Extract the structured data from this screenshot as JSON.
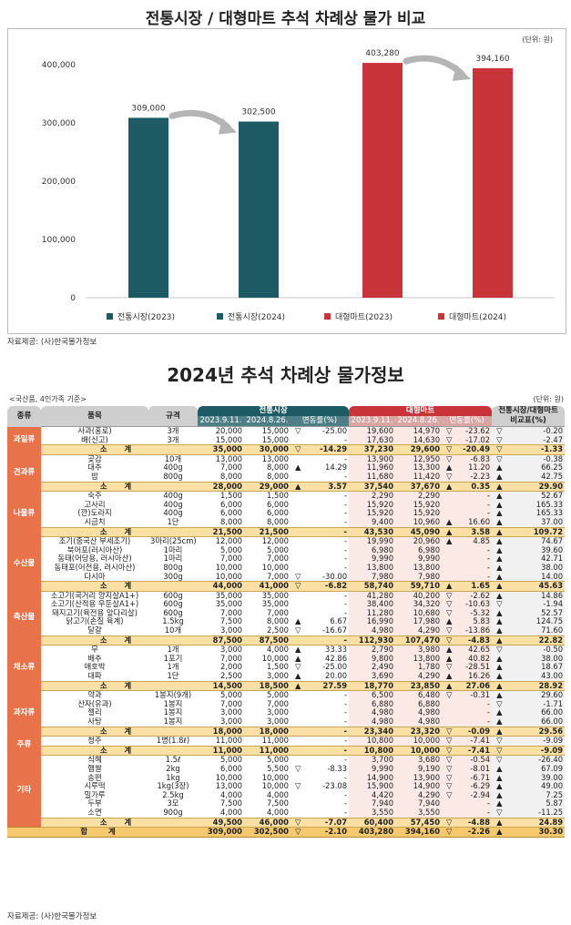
{
  "chart_title": "전통시장 / 대형마트 추석 차례상 물가 비교",
  "chart_unit": "(단위: 원)",
  "chart_data": {
    "type": "bar",
    "categories": [
      "전통시장(2023)",
      "전통시장(2024)",
      "대형마트(2023)",
      "대형마트(2024)"
    ],
    "values": [
      309000,
      302500,
      403280,
      394160
    ],
    "value_labels": [
      "309,000",
      "302,500",
      "403,280",
      "394,160"
    ],
    "colors": [
      "#1e5a63",
      "#1e5a63",
      "#c8343a",
      "#c8343a"
    ],
    "yticks": [
      "0",
      "100,000",
      "200,000",
      "300,000",
      "400,000"
    ],
    "ylim": [
      0,
      430000
    ],
    "legend": "bottom"
  },
  "source1": "자료제공: (사)한국물가정보",
  "table_title": "2024년 추석 차례상 물가정보",
  "note_left": "<국산품, 4인가족 기준>",
  "note_right": "(단위: 원)",
  "headers": {
    "category": "종류",
    "item": "품목",
    "spec": "규격",
    "trad": "전통시장",
    "mart": "대형마트",
    "date1": "2023.9.11.",
    "date2": "2024.8.26.",
    "change": "변동률(%)",
    "compare": "전통시장/대형마트 비교표(%)"
  },
  "groups": [
    {
      "category": "과일류",
      "rows": [
        {
          "item": "사과(홍로)",
          "spec": "3개",
          "t1": "20,000",
          "t2": "15,000",
          "ts": "▽",
          "tc": "-25.00",
          "m1": "19,600",
          "m2": "14,970",
          "ms": "▽",
          "mc": "-23.62",
          "cs": "▽",
          "cv": "-0.20"
        },
        {
          "item": "배(신고)",
          "spec": "3개",
          "t1": "15,000",
          "t2": "15,000",
          "ts": "",
          "tc": "-",
          "m1": "17,630",
          "m2": "14,630",
          "ms": "▽",
          "mc": "-17.02",
          "cs": "▽",
          "cv": "-2.47"
        }
      ],
      "subtotal": {
        "label": "소 계",
        "t1": "35,000",
        "t2": "30,000",
        "ts": "▽",
        "tc": "-14.29",
        "m1": "37,230",
        "m2": "29,600",
        "ms": "▽",
        "mc": "-20.49",
        "cs": "▽",
        "cv": "-1.33"
      }
    },
    {
      "category": "견과류",
      "rows": [
        {
          "item": "곶감",
          "spec": "10개",
          "t1": "13,000",
          "t2": "13,000",
          "ts": "",
          "tc": "-",
          "m1": "13,900",
          "m2": "12,950",
          "ms": "▽",
          "mc": "-6.83",
          "cs": "▽",
          "cv": "-0.38"
        },
        {
          "item": "대추",
          "spec": "400g",
          "t1": "7,000",
          "t2": "8,000",
          "ts": "▲",
          "tc": "14.29",
          "m1": "11,960",
          "m2": "13,300",
          "ms": "▲",
          "mc": "11.20",
          "cs": "▲",
          "cv": "66.25"
        },
        {
          "item": "밤",
          "spec": "800g",
          "t1": "8,000",
          "t2": "8,000",
          "ts": "",
          "tc": "-",
          "m1": "11,680",
          "m2": "11,420",
          "ms": "▽",
          "mc": "-2.23",
          "cs": "▲",
          "cv": "42.75"
        }
      ],
      "subtotal": {
        "label": "소 계",
        "t1": "28,000",
        "t2": "29,000",
        "ts": "▲",
        "tc": "3.57",
        "m1": "37,540",
        "m2": "37,670",
        "ms": "▲",
        "mc": "0.35",
        "cs": "▲",
        "cv": "29.90"
      }
    },
    {
      "category": "나물류",
      "rows": [
        {
          "item": "숙주",
          "spec": "400g",
          "t1": "1,500",
          "t2": "1,500",
          "ts": "",
          "tc": "-",
          "m1": "2,290",
          "m2": "2,290",
          "ms": "",
          "mc": "-",
          "cs": "▲",
          "cv": "52.67"
        },
        {
          "item": "고사리",
          "spec": "400g",
          "t1": "6,000",
          "t2": "6,000",
          "ts": "",
          "tc": "-",
          "m1": "15,920",
          "m2": "15,920",
          "ms": "",
          "mc": "-",
          "cs": "▲",
          "cv": "165.33"
        },
        {
          "item": "(깐)도라지",
          "spec": "400g",
          "t1": "6,000",
          "t2": "6,000",
          "ts": "",
          "tc": "-",
          "m1": "15,920",
          "m2": "15,920",
          "ms": "",
          "mc": "-",
          "cs": "▲",
          "cv": "165.33"
        },
        {
          "item": "시금치",
          "spec": "1단",
          "t1": "8,000",
          "t2": "8,000",
          "ts": "",
          "tc": "-",
          "m1": "9,400",
          "m2": "10,960",
          "ms": "▲",
          "mc": "16.60",
          "cs": "▲",
          "cv": "37.00"
        }
      ],
      "subtotal": {
        "label": "소 계",
        "t1": "21,500",
        "t2": "21,500",
        "ts": "",
        "tc": "-",
        "m1": "43,530",
        "m2": "45,090",
        "ms": "▲",
        "mc": "3.58",
        "cs": "▲",
        "cv": "109.72"
      }
    },
    {
      "category": "수산물",
      "rows": [
        {
          "item": "조기(중국산 부세조기)",
          "spec": "3마리(25cm)",
          "t1": "12,000",
          "t2": "12,000",
          "ts": "",
          "tc": "-",
          "m1": "19,990",
          "m2": "20,960",
          "ms": "▲",
          "mc": "4.85",
          "cs": "▲",
          "cv": "74.67"
        },
        {
          "item": "북어포(러시아산)",
          "spec": "1마리",
          "t1": "5,000",
          "t2": "5,000",
          "ts": "",
          "tc": "-",
          "m1": "6,980",
          "m2": "6,980",
          "ms": "",
          "mc": "-",
          "cs": "▲",
          "cv": "39.60"
        },
        {
          "item": "동태(어당용, 러시아산)",
          "spec": "1마리",
          "t1": "7,000",
          "t2": "7,000",
          "ts": "",
          "tc": "-",
          "m1": "9,990",
          "m2": "9,990",
          "ms": "",
          "mc": "-",
          "cs": "▲",
          "cv": "42.71"
        },
        {
          "item": "동태포(어전용, 러시아산)",
          "spec": "800g",
          "t1": "10,000",
          "t2": "10,000",
          "ts": "",
          "tc": "-",
          "m1": "13,800",
          "m2": "13,800",
          "ms": "",
          "mc": "-",
          "cs": "▲",
          "cv": "38.00"
        },
        {
          "item": "다시마",
          "spec": "300g",
          "t1": "10,000",
          "t2": "7,000",
          "ts": "▽",
          "tc": "-30.00",
          "m1": "7,980",
          "m2": "7,980",
          "ms": "",
          "mc": "-",
          "cs": "▲",
          "cv": "14.00"
        }
      ],
      "subtotal": {
        "label": "소 계",
        "t1": "44,000",
        "t2": "41,000",
        "ts": "▽",
        "tc": "-6.82",
        "m1": "58,740",
        "m2": "59,710",
        "ms": "▲",
        "mc": "1.65",
        "cs": "▲",
        "cv": "45.63"
      }
    },
    {
      "category": "축산물",
      "rows": [
        {
          "item": "소고기(국거리 양지살A1+)",
          "spec": "600g",
          "t1": "35,000",
          "t2": "35,000",
          "ts": "",
          "tc": "-",
          "m1": "41,280",
          "m2": "40,200",
          "ms": "▽",
          "mc": "-2.62",
          "cs": "▲",
          "cv": "14.86"
        },
        {
          "item": "소고기(산적용 우둔살A1+)",
          "spec": "600g",
          "t1": "35,000",
          "t2": "35,000",
          "ts": "",
          "tc": "-",
          "m1": "38,400",
          "m2": "34,320",
          "ms": "▽",
          "mc": "-10.63",
          "cs": "▽",
          "cv": "-1.94"
        },
        {
          "item": "돼지고기(육전용 앞다리살)",
          "spec": "600g",
          "t1": "7,000",
          "t2": "7,000",
          "ts": "",
          "tc": "-",
          "m1": "11,280",
          "m2": "10,680",
          "ms": "▽",
          "mc": "-5.32",
          "cs": "▲",
          "cv": "52.57"
        },
        {
          "item": "닭고기(손질 육계)",
          "spec": "1.5kg",
          "t1": "7,500",
          "t2": "8,000",
          "ts": "▲",
          "tc": "6.67",
          "m1": "16,990",
          "m2": "17,980",
          "ms": "▲",
          "mc": "5.83",
          "cs": "▲",
          "cv": "124.75"
        },
        {
          "item": "달걀",
          "spec": "10개",
          "t1": "3,000",
          "t2": "2,500",
          "ts": "▽",
          "tc": "-16.67",
          "m1": "4,980",
          "m2": "4,290",
          "ms": "▽",
          "mc": "-13.86",
          "cs": "▲",
          "cv": "71.60"
        }
      ],
      "subtotal": {
        "label": "소 계",
        "t1": "87,500",
        "t2": "87,500",
        "ts": "",
        "tc": "-",
        "m1": "112,930",
        "m2": "107,470",
        "ms": "▽",
        "mc": "-4.83",
        "cs": "▲",
        "cv": "22.82"
      }
    },
    {
      "category": "채소류",
      "rows": [
        {
          "item": "무",
          "spec": "1개",
          "t1": "3,000",
          "t2": "4,000",
          "ts": "▲",
          "tc": "33.33",
          "m1": "2,790",
          "m2": "3,980",
          "ms": "▲",
          "mc": "42.65",
          "cs": "▽",
          "cv": "-0.50"
        },
        {
          "item": "배추",
          "spec": "1포기",
          "t1": "7,000",
          "t2": "10,000",
          "ts": "▲",
          "tc": "42.86",
          "m1": "9,800",
          "m2": "13,800",
          "ms": "▲",
          "mc": "40.82",
          "cs": "▲",
          "cv": "38.00"
        },
        {
          "item": "애호박",
          "spec": "1개",
          "t1": "2,000",
          "t2": "1,500",
          "ts": "▽",
          "tc": "-25.00",
          "m1": "2,490",
          "m2": "1,780",
          "ms": "▽",
          "mc": "-28.51",
          "cs": "▲",
          "cv": "18.67"
        },
        {
          "item": "대파",
          "spec": "1단",
          "t1": "2,500",
          "t2": "3,000",
          "ts": "▲",
          "tc": "20.00",
          "m1": "3,690",
          "m2": "4,290",
          "ms": "▲",
          "mc": "16.26",
          "cs": "▲",
          "cv": "43.00"
        }
      ],
      "subtotal": {
        "label": "소 계",
        "t1": "14,500",
        "t2": "18,500",
        "ts": "▲",
        "tc": "27.59",
        "m1": "18,770",
        "m2": "23,850",
        "ms": "▲",
        "mc": "27.06",
        "cs": "▲",
        "cv": "28.92"
      }
    },
    {
      "category": "과자류",
      "rows": [
        {
          "item": "약과",
          "spec": "1봉지(9개)",
          "t1": "5,000",
          "t2": "5,000",
          "ts": "",
          "tc": "-",
          "m1": "6,500",
          "m2": "6,480",
          "ms": "▽",
          "mc": "-0.31",
          "cs": "▲",
          "cv": "29.60"
        },
        {
          "item": "산자(유과)",
          "spec": "1봉지",
          "t1": "7,000",
          "t2": "7,000",
          "ts": "",
          "tc": "-",
          "m1": "6,880",
          "m2": "6,880",
          "ms": "",
          "mc": "-",
          "cs": "▽",
          "cv": "-1.71"
        },
        {
          "item": "젤리",
          "spec": "1봉지",
          "t1": "3,000",
          "t2": "3,000",
          "ts": "",
          "tc": "-",
          "m1": "4,980",
          "m2": "4,980",
          "ms": "",
          "mc": "-",
          "cs": "▲",
          "cv": "66.00"
        },
        {
          "item": "사탕",
          "spec": "1봉지",
          "t1": "3,000",
          "t2": "3,000",
          "ts": "",
          "tc": "-",
          "m1": "4,980",
          "m2": "4,980",
          "ms": "",
          "mc": "-",
          "cs": "▲",
          "cv": "66.00"
        }
      ],
      "subtotal": {
        "label": "소 계",
        "t1": "18,000",
        "t2": "18,000",
        "ts": "",
        "tc": "-",
        "m1": "23,340",
        "m2": "23,320",
        "ms": "▽",
        "mc": "-0.09",
        "cs": "▲",
        "cv": "29.56"
      }
    },
    {
      "category": "주류",
      "rows": [
        {
          "item": "청주",
          "spec": "1병(1.8ℓ)",
          "t1": "11,000",
          "t2": "11,000",
          "ts": "",
          "tc": "-",
          "m1": "10,800",
          "m2": "10,000",
          "ms": "▽",
          "mc": "-7.41",
          "cs": "▽",
          "cv": "-9.09"
        }
      ],
      "subtotal": {
        "label": "소 계",
        "t1": "11,000",
        "t2": "11,000",
        "ts": "",
        "tc": "-",
        "m1": "10,800",
        "m2": "10,000",
        "ms": "▽",
        "mc": "-7.41",
        "cs": "▽",
        "cv": "-9.09"
      }
    },
    {
      "category": "기타",
      "rows": [
        {
          "item": "식혜",
          "spec": "1.5ℓ",
          "t1": "5,000",
          "t2": "5,000",
          "ts": "",
          "tc": "-",
          "m1": "3,700",
          "m2": "3,680",
          "ms": "▽",
          "mc": "-0.54",
          "cs": "▽",
          "cv": "-26.40"
        },
        {
          "item": "햅쌀",
          "spec": "2kg",
          "t1": "6,000",
          "t2": "5,500",
          "ts": "▽",
          "tc": "-8.33",
          "m1": "9,990",
          "m2": "9,190",
          "ms": "▽",
          "mc": "-8.01",
          "cs": "▲",
          "cv": "67.09"
        },
        {
          "item": "송편",
          "spec": "1kg",
          "t1": "10,000",
          "t2": "10,000",
          "ts": "",
          "tc": "-",
          "m1": "14,900",
          "m2": "13,900",
          "ms": "▽",
          "mc": "-6.71",
          "cs": "▲",
          "cv": "39.00"
        },
        {
          "item": "시루떡",
          "spec": "1kg(3장)",
          "t1": "13,000",
          "t2": "10,000",
          "ts": "▽",
          "tc": "-23.08",
          "m1": "15,900",
          "m2": "14,900",
          "ms": "▽",
          "mc": "-6.29",
          "cs": "▲",
          "cv": "49.00"
        },
        {
          "item": "밀가루",
          "spec": "2.5kg",
          "t1": "4,000",
          "t2": "4,000",
          "ts": "",
          "tc": "-",
          "m1": "4,420",
          "m2": "4,290",
          "ms": "▽",
          "mc": "-2.94",
          "cs": "▲",
          "cv": "7.25"
        },
        {
          "item": "두부",
          "spec": "3모",
          "t1": "7,500",
          "t2": "7,500",
          "ts": "",
          "tc": "-",
          "m1": "7,940",
          "m2": "7,940",
          "ms": "",
          "mc": "-",
          "cs": "▲",
          "cv": "5.87"
        },
        {
          "item": "소면",
          "spec": "900g",
          "t1": "4,000",
          "t2": "4,000",
          "ts": "",
          "tc": "-",
          "m1": "3,550",
          "m2": "3,550",
          "ms": "",
          "mc": "-",
          "cs": "▽",
          "cv": "-11.25"
        }
      ],
      "subtotal": {
        "label": "소 계",
        "t1": "49,500",
        "t2": "46,000",
        "ts": "▽",
        "tc": "-7.07",
        "m1": "60,400",
        "m2": "57,450",
        "ms": "▽",
        "mc": "-4.88",
        "cs": "▲",
        "cv": "24.89"
      }
    }
  ],
  "grand_total": {
    "label": "합 계",
    "t1": "309,000",
    "t2": "302,500",
    "ts": "▽",
    "tc": "-2.10",
    "m1": "403,280",
    "m2": "394,160",
    "ms": "▽",
    "mc": "-2.26",
    "cs": "▲",
    "cv": "30.30"
  },
  "source2": "자료제공: (사)한국물가정보"
}
